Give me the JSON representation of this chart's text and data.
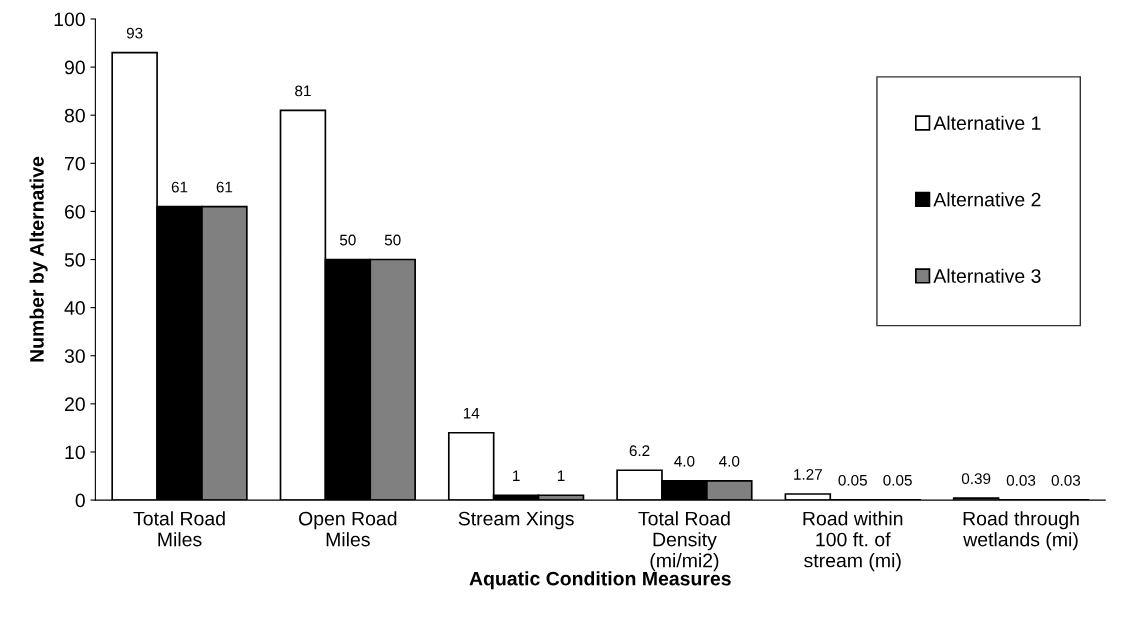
{
  "chart_data": {
    "type": "bar",
    "xlabel": "Aquatic Condition Measures",
    "ylabel": "Number by Alternative",
    "categories": [
      "Total Road\nMiles",
      "Open Road\nMiles",
      "Stream Xings",
      "Total Road\nDensity\n(mi/mi2)",
      "Road within\n100 ft. of\nstream (mi)",
      "Road through\nwetlands (mi)"
    ],
    "series": [
      {
        "name": "Alternative 1",
        "color": "#ffffff",
        "values": [
          93,
          81,
          14,
          6.2,
          1.27,
          0.39
        ],
        "value_labels": [
          "93",
          "81",
          "14",
          "6.2",
          "1.27",
          "0.39"
        ]
      },
      {
        "name": "Alternative 2",
        "color": "#000000",
        "values": [
          61,
          50,
          1,
          4.0,
          0.05,
          0.03
        ],
        "value_labels": [
          "61",
          "50",
          "1",
          "4.0",
          "0.05",
          "0.03"
        ]
      },
      {
        "name": "Alternative 3",
        "color": "#808080",
        "values": [
          61,
          50,
          1,
          4.0,
          0.05,
          0.03
        ],
        "value_labels": [
          "61",
          "50",
          "1",
          "4.0",
          "0.05",
          "0.03"
        ]
      }
    ],
    "ylim": [
      0,
      100
    ],
    "yticks": [
      0,
      10,
      20,
      30,
      40,
      50,
      60,
      70,
      80,
      90,
      100
    ],
    "grid": false,
    "legend": "top right"
  }
}
